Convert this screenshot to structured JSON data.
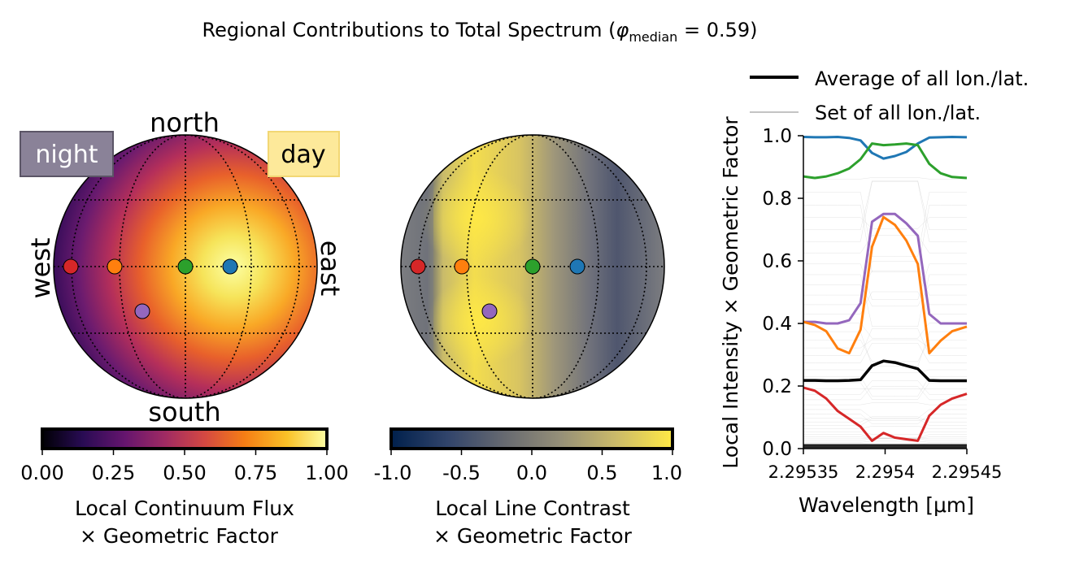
{
  "title": {
    "main": "Regional Contributions to Total Spectrum (",
    "phi": "φ",
    "sub": "median",
    "value": " = 0.59)"
  },
  "disk_left": {
    "labels": {
      "north": "north",
      "south": "south",
      "west": "west",
      "east": "east"
    },
    "night_label": "night",
    "day_label": "day",
    "colorbar": {
      "ticks": [
        "0.00",
        "0.25",
        "0.50",
        "0.75",
        "1.00"
      ],
      "label_line1": "Local Continuum Flux",
      "label_line2": "× Geometric Factor"
    }
  },
  "disk_right": {
    "colorbar": {
      "ticks": [
        "-1.0",
        "-0.5",
        "0.0",
        "0.5",
        "1.0"
      ],
      "label_line1": "Local Line Contrast",
      "label_line2": "× Geometric Factor"
    }
  },
  "markers": [
    {
      "name": "red",
      "color": "#d62728"
    },
    {
      "name": "orange",
      "color": "#ff7f0e"
    },
    {
      "name": "green",
      "color": "#2ca02c"
    },
    {
      "name": "blue",
      "color": "#1f77b4"
    },
    {
      "name": "purple",
      "color": "#9467bd"
    }
  ],
  "chart_data": {
    "type": "line",
    "xlabel": "Wavelength [μm]",
    "ylabel": "Local Intensity × Geometric Factor",
    "xlim": [
      2.29535,
      2.29545
    ],
    "ylim": [
      0.0,
      1.0
    ],
    "xticks": [
      "2.29535",
      "2.2954",
      "2.29545"
    ],
    "yticks": [
      "0.0",
      "0.2",
      "0.4",
      "0.6",
      "0.8",
      "1.0"
    ],
    "legend": [
      {
        "label": "Average of all lon./lat.",
        "style": "thick-black"
      },
      {
        "label": "Set of all lon./lat.",
        "style": "thin-gray"
      }
    ],
    "x": [
      2.29535,
      2.295357,
      2.295364,
      2.295371,
      2.295378,
      2.295385,
      2.295392,
      2.295399,
      2.295406,
      2.295413,
      2.29542,
      2.295427,
      2.295434,
      2.295441,
      2.29545
    ],
    "series": [
      {
        "color": "#1f77b4",
        "values": [
          0.996,
          0.995,
          0.995,
          0.996,
          0.993,
          0.985,
          0.945,
          0.927,
          0.935,
          0.948,
          0.975,
          0.994,
          0.995,
          0.996,
          0.995
        ]
      },
      {
        "color": "#2ca02c",
        "values": [
          0.87,
          0.865,
          0.87,
          0.88,
          0.895,
          0.925,
          0.975,
          0.97,
          0.972,
          0.975,
          0.97,
          0.91,
          0.88,
          0.868,
          0.865
        ]
      },
      {
        "color": "#9467bd",
        "values": [
          0.405,
          0.405,
          0.4,
          0.4,
          0.41,
          0.465,
          0.725,
          0.75,
          0.75,
          0.72,
          0.68,
          0.43,
          0.4,
          0.4,
          0.4
        ]
      },
      {
        "color": "#ff7f0e",
        "values": [
          0.405,
          0.395,
          0.375,
          0.32,
          0.305,
          0.38,
          0.645,
          0.74,
          0.715,
          0.665,
          0.59,
          0.305,
          0.345,
          0.375,
          0.39
        ]
      },
      {
        "color": "#000000",
        "values": [
          0.218,
          0.218,
          0.217,
          0.217,
          0.218,
          0.22,
          0.265,
          0.28,
          0.275,
          0.265,
          0.255,
          0.218,
          0.217,
          0.217,
          0.217
        ]
      },
      {
        "color": "#d62728",
        "values": [
          0.195,
          0.185,
          0.16,
          0.12,
          0.095,
          0.07,
          0.025,
          0.05,
          0.035,
          0.03,
          0.025,
          0.105,
          0.14,
          0.16,
          0.175
        ]
      }
    ]
  }
}
